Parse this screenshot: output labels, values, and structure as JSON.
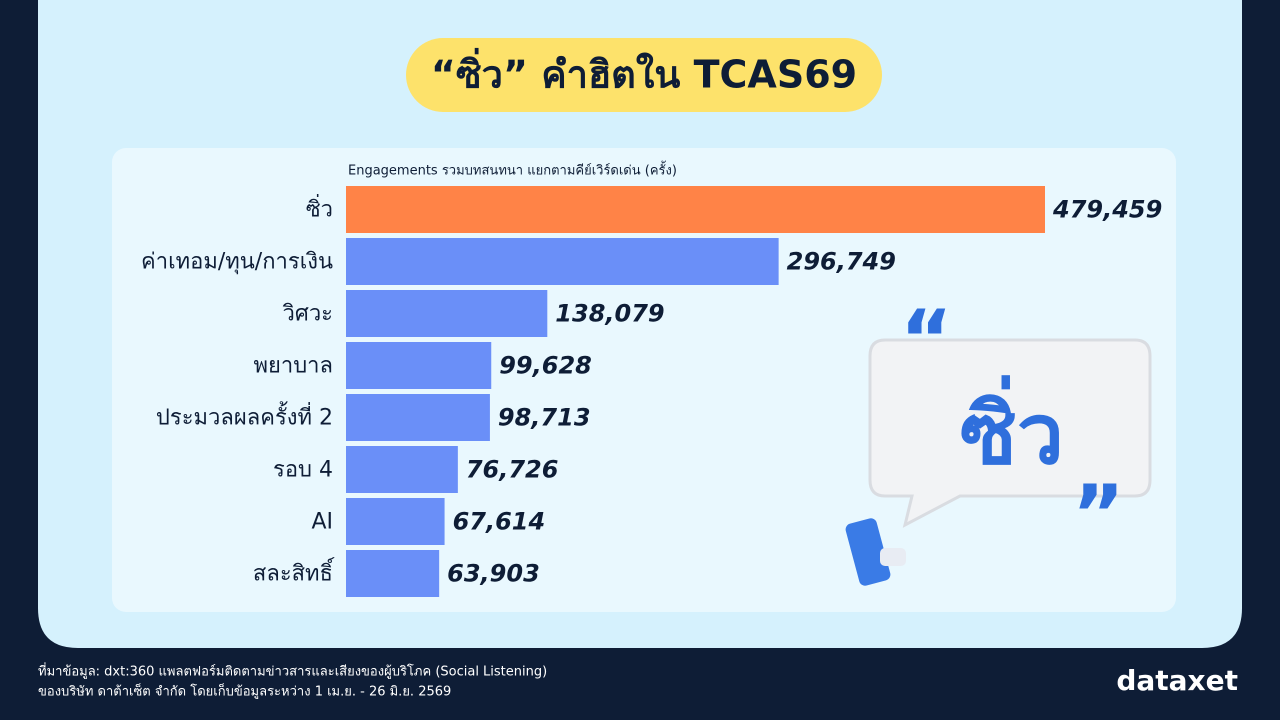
{
  "chart_data": {
    "type": "bar",
    "orientation": "horizontal",
    "title": "“ซิ่ว” คำฮิตใน TCAS69",
    "subtitle": "Engagements รวมบทสนทนา แยกตามคีย์เวิร์ดเด่น (ครั้ง)",
    "categories": [
      "ซิ่ว",
      "ค่าเทอม/ทุน/การเงิน",
      "วิศวะ",
      "พยาบาล",
      "ประมวลผลครั้งที่ 2",
      "รอบ 4",
      "AI",
      "สละสิทธิ์"
    ],
    "values": [
      479459,
      296749,
      138079,
      99628,
      98713,
      76726,
      67614,
      63903
    ],
    "value_labels": [
      "479,459",
      "296,749",
      "138,079",
      "99,628",
      "98,713",
      "76,726",
      "67,614",
      "63,903"
    ],
    "colors": [
      "#ff8347",
      "#6a8ff8",
      "#6a8ff8",
      "#6a8ff8",
      "#6a8ff8",
      "#6a8ff8",
      "#6a8ff8",
      "#6a8ff8"
    ],
    "illustration_text": "ซิ่ว"
  },
  "footer": {
    "source": [
      "ที่มาข้อมูล: dxt:360 แพลตฟอร์มติดตามข่าวสารและเสียงของผู้บริโภค (Social Listening)",
      "ของบริษัท ดาต้าเซ็ต จำกัด โดยเก็บข้อมูลระหว่าง 1 เม.ย. - 26 มิ.ย. 2569"
    ],
    "logo": "dataxet"
  }
}
